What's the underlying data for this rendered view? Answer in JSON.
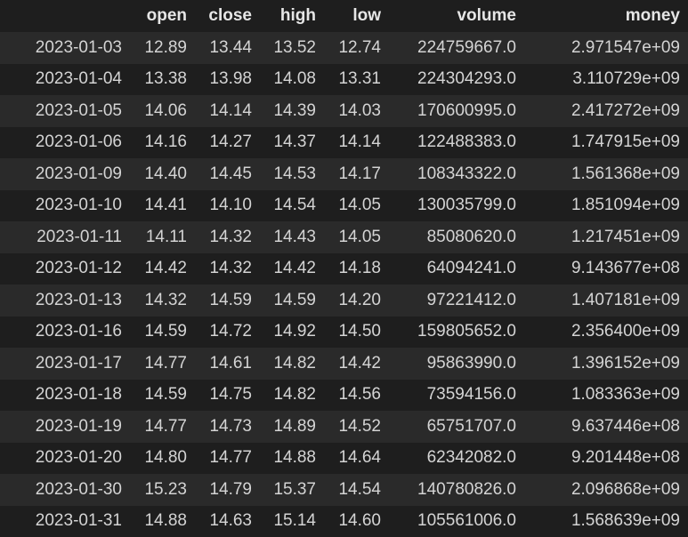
{
  "table": {
    "columns": [
      "",
      "open",
      "close",
      "high",
      "low",
      "volume",
      "money"
    ],
    "rows": [
      [
        "2023-01-03",
        "12.89",
        "13.44",
        "13.52",
        "12.74",
        "224759667.0",
        "2.971547e+09"
      ],
      [
        "2023-01-04",
        "13.38",
        "13.98",
        "14.08",
        "13.31",
        "224304293.0",
        "3.110729e+09"
      ],
      [
        "2023-01-05",
        "14.06",
        "14.14",
        "14.39",
        "14.03",
        "170600995.0",
        "2.417272e+09"
      ],
      [
        "2023-01-06",
        "14.16",
        "14.27",
        "14.37",
        "14.14",
        "122488383.0",
        "1.747915e+09"
      ],
      [
        "2023-01-09",
        "14.40",
        "14.45",
        "14.53",
        "14.17",
        "108343322.0",
        "1.561368e+09"
      ],
      [
        "2023-01-10",
        "14.41",
        "14.10",
        "14.54",
        "14.05",
        "130035799.0",
        "1.851094e+09"
      ],
      [
        "2023-01-11",
        "14.11",
        "14.32",
        "14.43",
        "14.05",
        "85080620.0",
        "1.217451e+09"
      ],
      [
        "2023-01-12",
        "14.42",
        "14.32",
        "14.42",
        "14.18",
        "64094241.0",
        "9.143677e+08"
      ],
      [
        "2023-01-13",
        "14.32",
        "14.59",
        "14.59",
        "14.20",
        "97221412.0",
        "1.407181e+09"
      ],
      [
        "2023-01-16",
        "14.59",
        "14.72",
        "14.92",
        "14.50",
        "159805652.0",
        "2.356400e+09"
      ],
      [
        "2023-01-17",
        "14.77",
        "14.61",
        "14.82",
        "14.42",
        "95863990.0",
        "1.396152e+09"
      ],
      [
        "2023-01-18",
        "14.59",
        "14.75",
        "14.82",
        "14.56",
        "73594156.0",
        "1.083363e+09"
      ],
      [
        "2023-01-19",
        "14.77",
        "14.73",
        "14.89",
        "14.52",
        "65751707.0",
        "9.637446e+08"
      ],
      [
        "2023-01-20",
        "14.80",
        "14.77",
        "14.88",
        "14.64",
        "62342082.0",
        "9.201448e+08"
      ],
      [
        "2023-01-30",
        "15.23",
        "14.79",
        "15.37",
        "14.54",
        "140780826.0",
        "2.096868e+09"
      ],
      [
        "2023-01-31",
        "14.88",
        "14.63",
        "15.14",
        "14.60",
        "105561006.0",
        "1.568639e+09"
      ]
    ]
  },
  "colors": {
    "background": "#1e1e1e",
    "row_stripe": "#2a2a2a",
    "text": "#d4d4d4",
    "header_text": "#e6e6e6"
  }
}
